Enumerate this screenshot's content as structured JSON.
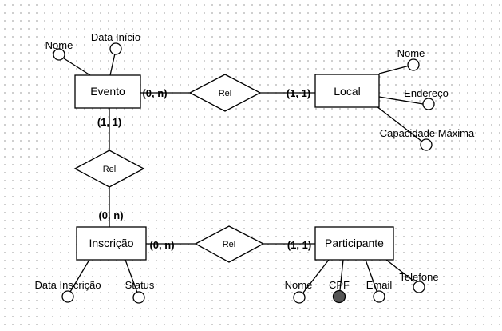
{
  "entities": {
    "evento": "Evento",
    "local": "Local",
    "inscricao": "Inscrição",
    "participante": "Participante"
  },
  "relationships": {
    "evento_local": "Rel",
    "evento_inscricao": "Rel",
    "inscricao_participante": "Rel"
  },
  "attributes": {
    "evento_nome": "Nome",
    "evento_data_inicio": "Data Início",
    "local_nome": "Nome",
    "local_endereco": "Endereço",
    "local_capacidade": "Capacidade Máxima",
    "inscricao_data": "Data Inscrição",
    "inscricao_status": "Status",
    "participante_nome": "Nome",
    "participante_cpf": "CPF",
    "participante_email": "Email",
    "participante_telefone": "Telefone"
  },
  "cardinalities": {
    "evento_to_local_rel": "(0, n)",
    "local_to_local_rel": "(1, 1)",
    "evento_to_inscricao_rel": "(1, 1)",
    "inscricao_to_evento_rel": "(0, n)",
    "inscricao_to_participante_rel": "(0, n)",
    "participante_to_participante_rel": "(1, 1)"
  },
  "colors": {
    "line": "#000000",
    "fill": "#ffffff",
    "key_attribute": "#555555",
    "grid": "#b8b8b8"
  }
}
